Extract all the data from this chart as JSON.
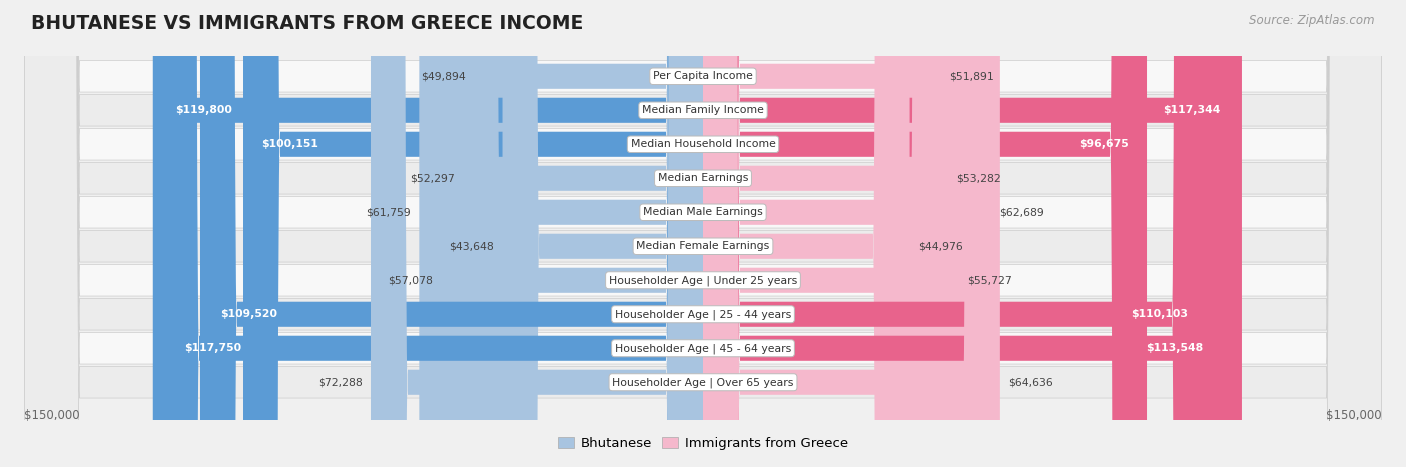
{
  "title": "BHUTANESE VS IMMIGRANTS FROM GREECE INCOME",
  "source": "Source: ZipAtlas.com",
  "max_val": 150000,
  "legend": [
    "Bhutanese",
    "Immigrants from Greece"
  ],
  "blue_color_light": "#a8c4e0",
  "blue_color_dark": "#5b9bd5",
  "pink_color_light": "#f5b8cc",
  "pink_color_dark": "#e8638c",
  "categories": [
    "Per Capita Income",
    "Median Family Income",
    "Median Household Income",
    "Median Earnings",
    "Median Male Earnings",
    "Median Female Earnings",
    "Householder Age | Under 25 years",
    "Householder Age | 25 - 44 years",
    "Householder Age | 45 - 64 years",
    "Householder Age | Over 65 years"
  ],
  "bhutanese_values": [
    49894,
    119800,
    100151,
    52297,
    61759,
    43648,
    57078,
    109520,
    117750,
    72288
  ],
  "greece_values": [
    51891,
    117344,
    96675,
    53282,
    62689,
    44976,
    55727,
    110103,
    113548,
    64636
  ],
  "bhutanese_labels": [
    "$49,894",
    "$119,800",
    "$100,151",
    "$52,297",
    "$61,759",
    "$43,648",
    "$57,078",
    "$109,520",
    "$117,750",
    "$72,288"
  ],
  "greece_labels": [
    "$51,891",
    "$117,344",
    "$96,675",
    "$53,282",
    "$62,689",
    "$44,976",
    "$55,727",
    "$110,103",
    "$113,548",
    "$64,636"
  ],
  "background_color": "#f0f0f0",
  "row_colors": [
    "#f8f8f8",
    "#ececec"
  ],
  "inside_label_threshold": 75000
}
